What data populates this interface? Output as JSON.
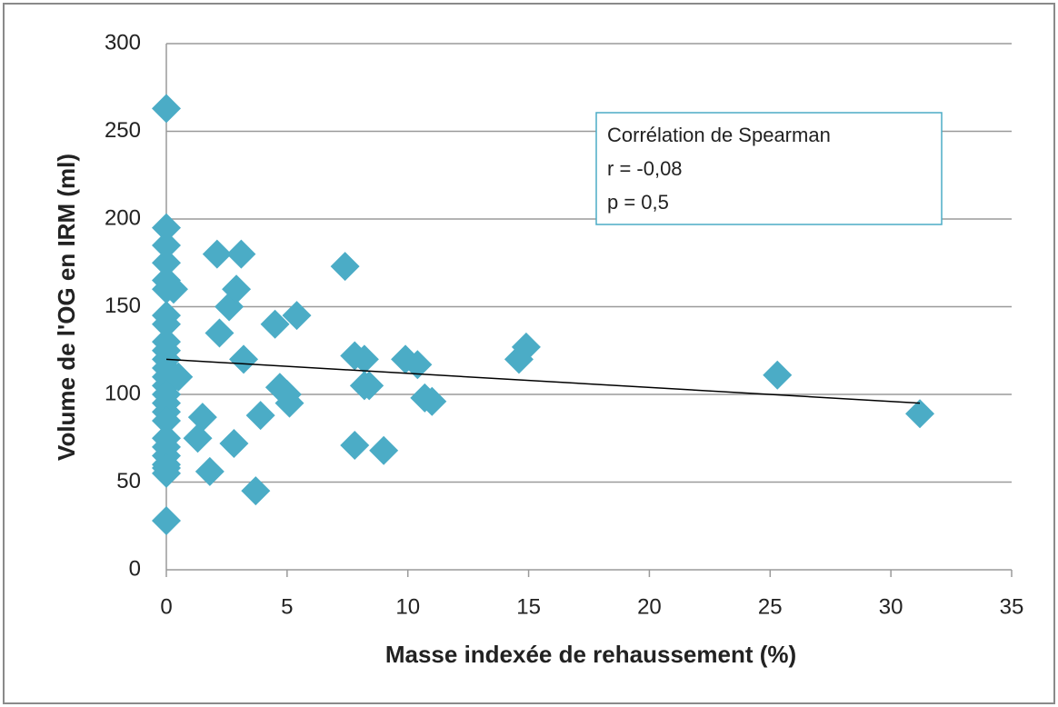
{
  "chart_data": {
    "type": "scatter",
    "xlabel": "Masse indexée de rehaussement (%)",
    "ylabel": "Volume de l'OG en IRM (ml)",
    "x": [
      0,
      0,
      0,
      0,
      0,
      0,
      0,
      0,
      0,
      0,
      0,
      0,
      0,
      0,
      0,
      0,
      0,
      0,
      0,
      0,
      0,
      0,
      0,
      0,
      0,
      0.3,
      0.5,
      1.3,
      1.5,
      1.8,
      2.1,
      2.2,
      2.6,
      2.8,
      2.9,
      3.1,
      3.2,
      3.7,
      3.9,
      4.5,
      4.7,
      5,
      5.1,
      5.4,
      7.4,
      7.8,
      7.8,
      8.2,
      8.2,
      8.4,
      9,
      9.9,
      10.4,
      10.7,
      11,
      14.6,
      14.9,
      25.3,
      31.2
    ],
    "values": [
      263,
      195,
      185,
      175,
      165,
      160,
      145,
      140,
      130,
      125,
      120,
      115,
      110,
      105,
      100,
      95,
      90,
      85,
      75,
      70,
      65,
      60,
      58,
      55,
      28,
      160,
      110,
      75,
      87,
      56,
      180,
      135,
      150,
      72,
      160,
      180,
      120,
      45,
      88,
      140,
      104,
      100,
      95,
      145,
      173,
      122,
      71,
      120,
      105,
      105,
      68,
      120,
      117,
      98,
      96,
      120,
      127,
      111,
      89
    ],
    "color": "#4bacc6",
    "trendline": {
      "x": [
        0,
        31.2
      ],
      "values": [
        120,
        95
      ],
      "color": "#000000"
    },
    "annotation": [
      "Corrélation de Spearman",
      "r = -0,08",
      "p = 0,5"
    ],
    "xlim": [
      0,
      35
    ],
    "xticks": [
      0,
      5,
      10,
      15,
      20,
      25,
      30,
      35
    ],
    "ylim": [
      0,
      300
    ],
    "yticks": [
      0,
      50,
      100,
      150,
      200,
      250,
      300
    ],
    "grid": true
  }
}
